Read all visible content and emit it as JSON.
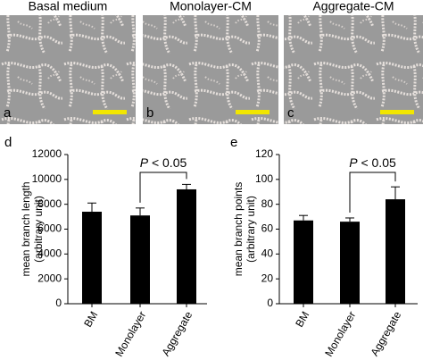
{
  "panels": [
    {
      "title": "Basal medium",
      "letter": "a"
    },
    {
      "title": "Monolayer-CM",
      "letter": "b"
    },
    {
      "title": "Aggregate-CM",
      "letter": "c"
    }
  ],
  "chart_data": [
    {
      "type": "bar",
      "label": "d",
      "ylabel": [
        "mean branch length",
        "(arbitrary unit)"
      ],
      "categories": [
        "BM",
        "Monolayer",
        "Aggregate"
      ],
      "values": [
        7400,
        7100,
        9200
      ],
      "errors": [
        700,
        600,
        400
      ],
      "color": "#000000",
      "ylim": [
        0,
        12000
      ],
      "yticks": [
        0,
        2000,
        4000,
        6000,
        8000,
        10000,
        12000
      ],
      "annotation": "P < 0.05"
    },
    {
      "type": "bar",
      "label": "e",
      "ylabel": [
        "mean branch points",
        "(arbitrary unit)"
      ],
      "categories": [
        "BM",
        "Monolayer",
        "Aggregate"
      ],
      "values": [
        67,
        66,
        84
      ],
      "errors": [
        4,
        3,
        10
      ],
      "color": "#000000",
      "ylim": [
        0,
        120
      ],
      "yticks": [
        0,
        20,
        40,
        60,
        80,
        100,
        120
      ],
      "annotation": "P < 0.05"
    }
  ]
}
